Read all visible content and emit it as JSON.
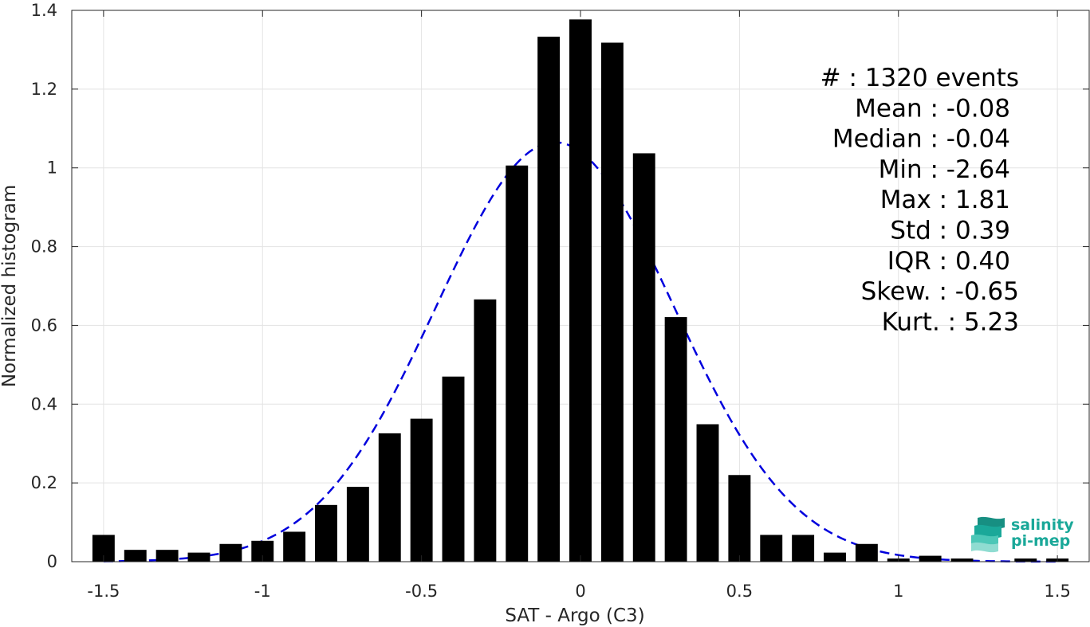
{
  "chart_data": {
    "type": "bar",
    "xlabel": "SAT - Argo (C3)",
    "ylabel": "Normalized histogram",
    "xlim": [
      -1.6,
      1.6
    ],
    "ylim": [
      0,
      1.4
    ],
    "xticks": [
      "-1.5",
      "-1",
      "-0.5",
      "0",
      "0.5",
      "1",
      "1.5"
    ],
    "xtick_values": [
      -1.5,
      -1,
      -0.5,
      0,
      0.5,
      1,
      1.5
    ],
    "yticks": [
      "0",
      "0.2",
      "0.4",
      "0.6",
      "0.8",
      "1",
      "1.2",
      "1.4"
    ],
    "ytick_values": [
      0,
      0.2,
      0.4,
      0.6,
      0.8,
      1,
      1.2,
      1.4
    ],
    "grid": true,
    "bar_color": "#000000",
    "fit_color": "#0000dd",
    "bins": [
      -1.5,
      -1.4,
      -1.3,
      -1.2,
      -1.1,
      -1.0,
      -0.9,
      -0.8,
      -0.7,
      -0.6,
      -0.5,
      -0.4,
      -0.3,
      -0.2,
      -0.1,
      0.0,
      0.1,
      0.2,
      0.3,
      0.4,
      0.5,
      0.6,
      0.7,
      0.8,
      0.9,
      1.0,
      1.1,
      1.2,
      1.3,
      1.4,
      1.5
    ],
    "values": [
      0.068,
      0.03,
      0.03,
      0.023,
      0.045,
      0.053,
      0.076,
      0.144,
      0.19,
      0.326,
      0.363,
      0.47,
      0.666,
      1.006,
      1.333,
      1.377,
      1.318,
      1.037,
      0.621,
      0.349,
      0.22,
      0.068,
      0.068,
      0.023,
      0.045,
      0.008,
      0.015,
      0.008,
      0.0,
      0.008,
      0.008
    ],
    "fit": {
      "type": "gaussian",
      "mean": -0.08,
      "std": 0.375,
      "peak": 1.065
    },
    "stats": [
      "#  : 1320 events",
      "Mean : -0.08",
      "Median : -0.04",
      "Min : -2.64",
      "Max : 1.81",
      "Std : 0.39",
      "IQR : 0.40",
      "Skew. : -0.65",
      "Kurt. : 5.23"
    ]
  },
  "logo": {
    "line1": "salinity",
    "line2": "pi-mep",
    "color": "#1aa899"
  }
}
